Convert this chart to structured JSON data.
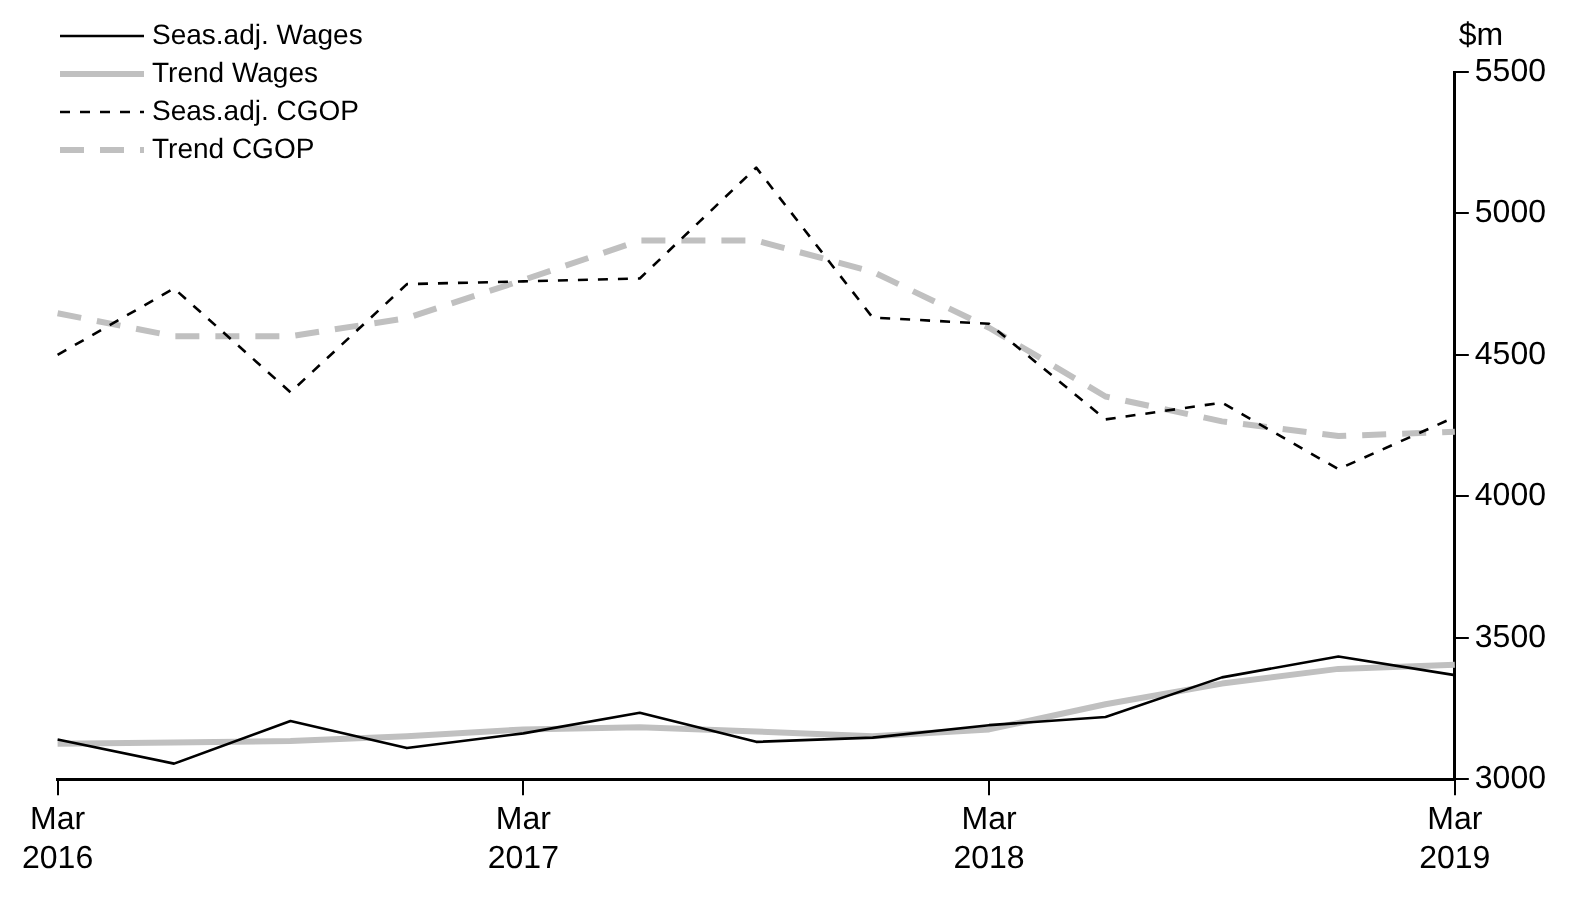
{
  "chart_data": {
    "type": "line",
    "ylabel": "$m",
    "categories": [
      "Mar 2016",
      null,
      null,
      null,
      "Mar 2017",
      null,
      null,
      null,
      "Mar 2018",
      null,
      null,
      null,
      "Mar 2019"
    ],
    "ylim": [
      3000,
      5500
    ],
    "yticks": [
      3000,
      3500,
      4000,
      4500,
      5000,
      5500
    ],
    "grid": false,
    "legend": "top left",
    "marker": "none",
    "series": [
      {
        "name": "Seas.adj. Wages",
        "color": "#000000",
        "line_style": "solid",
        "values": [
          3140,
          3055,
          3206,
          3110,
          3162,
          3235,
          3132,
          3147,
          3191,
          3220,
          3360,
          3434,
          3368
        ]
      },
      {
        "name": "Trend Wages",
        "color": "#c0c0c0",
        "line_style": "solid",
        "values": [
          3125,
          3130,
          3135,
          3152,
          3176,
          3184,
          3169,
          3152,
          3176,
          3265,
          3338,
          3390,
          3405
        ]
      },
      {
        "name": "Seas.adj. CGOP",
        "color": "#000000",
        "line_style": "dashed",
        "values": [
          4500,
          4735,
          4368,
          4750,
          4760,
          4770,
          5162,
          4632,
          4610,
          4272,
          4331,
          4096,
          4280
        ]
      },
      {
        "name": "Trend CGOP",
        "color": "#c0c0c0",
        "line_style": "dashed",
        "values": [
          4647,
          4566,
          4566,
          4630,
          4765,
          4904,
          4904,
          4794,
          4596,
          4353,
          4265,
          4213,
          4228
        ]
      }
    ]
  }
}
